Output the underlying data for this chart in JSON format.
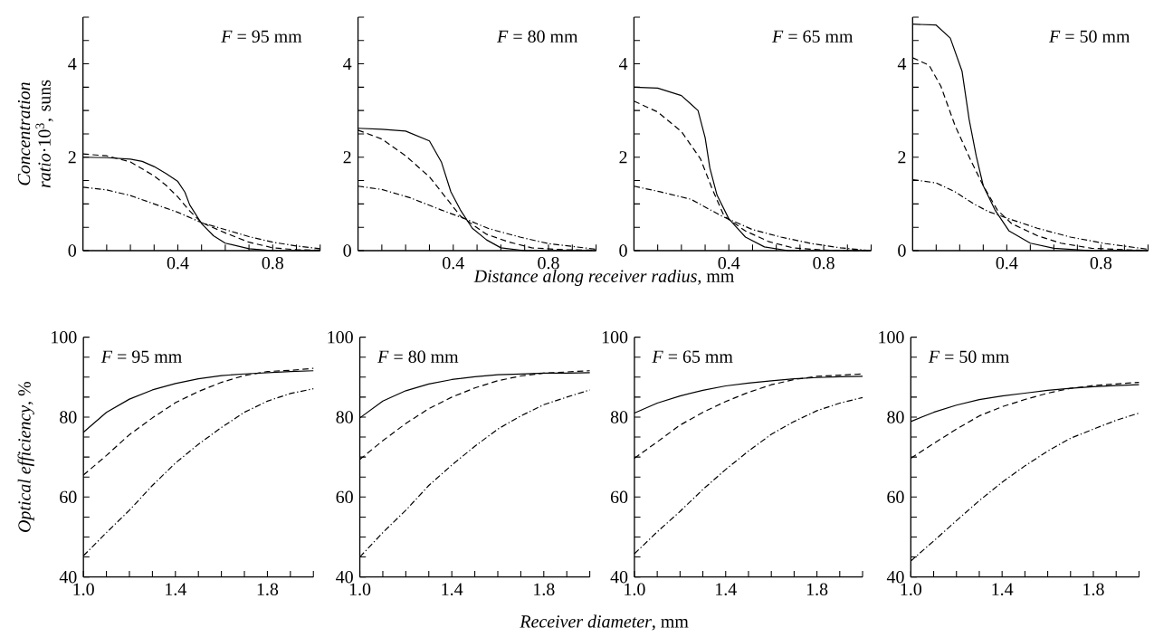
{
  "chart_data": [
    {
      "type": "line",
      "title": "*F* = 95 mm",
      "ylabel": "*Concentration ratio*·10$^{3}$, suns",
      "xlim": [
        0,
        1.0
      ],
      "ylim": [
        0,
        5
      ],
      "xticks": [
        {
          "value": 0.1,
          "label": null
        },
        {
          "value": 0.2,
          "label": null
        },
        {
          "value": 0.3,
          "label": null
        },
        0.4,
        {
          "value": 0.5,
          "label": null
        },
        {
          "value": 0.6,
          "label": null
        },
        {
          "value": 0.7,
          "label": null
        },
        0.8,
        {
          "value": 0.9,
          "label": null
        },
        {
          "value": 1.0,
          "label": null
        }
      ],
      "yticks": [
        0,
        {
          "value": 0.5,
          "label": null
        },
        {
          "value": 1,
          "label": null
        },
        {
          "value": 1.5,
          "label": null
        },
        2,
        {
          "value": 2.5,
          "label": null
        },
        {
          "value": 3,
          "label": null
        },
        {
          "value": 3.5,
          "label": null
        },
        4,
        {
          "value": 4.5,
          "label": null
        },
        {
          "value": 5,
          "label": null
        }
      ],
      "series": [
        {
          "color": "#000000",
          "line_style": "solid",
          "x": [
            0,
            0.1,
            0.2,
            0.25,
            0.3,
            0.35,
            0.4,
            0.43,
            0.45,
            0.5,
            0.55,
            0.6,
            0.7,
            0.8,
            1.0
          ],
          "values": [
            2.0,
            1.99,
            1.96,
            1.91,
            1.8,
            1.65,
            1.48,
            1.25,
            0.98,
            0.58,
            0.32,
            0.16,
            0.04,
            0.0,
            0.0
          ]
        },
        {
          "color": "#000000",
          "line_style": "dashed",
          "x": [
            0,
            0.1,
            0.2,
            0.3,
            0.35,
            0.4,
            0.45,
            0.5,
            0.6,
            0.7,
            0.8,
            0.9,
            1.0
          ],
          "values": [
            2.07,
            2.03,
            1.9,
            1.6,
            1.4,
            1.15,
            0.85,
            0.6,
            0.38,
            0.18,
            0.06,
            0.02,
            0.01
          ]
        },
        {
          "color": "#000000",
          "line_style": "dashdot",
          "x": [
            0,
            0.1,
            0.2,
            0.3,
            0.4,
            0.5,
            0.6,
            0.7,
            0.8,
            0.9,
            1.0
          ],
          "values": [
            1.36,
            1.3,
            1.18,
            1.0,
            0.82,
            0.6,
            0.45,
            0.3,
            0.18,
            0.1,
            0.04
          ]
        }
      ]
    },
    {
      "type": "line",
      "title": "*F* = 80 mm",
      "xlabel": "*Distance along receiver radius*, mm",
      "xlim": [
        0,
        1.0
      ],
      "ylim": [
        0,
        5
      ],
      "xticks": [
        {
          "value": 0.1,
          "label": null
        },
        {
          "value": 0.2,
          "label": null
        },
        {
          "value": 0.3,
          "label": null
        },
        0.4,
        {
          "value": 0.5,
          "label": null
        },
        {
          "value": 0.6,
          "label": null
        },
        {
          "value": 0.7,
          "label": null
        },
        0.8,
        {
          "value": 0.9,
          "label": null
        },
        {
          "value": 1.0,
          "label": null
        }
      ],
      "yticks": [
        0,
        {
          "value": 0.5,
          "label": null
        },
        {
          "value": 1,
          "label": null
        },
        {
          "value": 1.5,
          "label": null
        },
        2,
        {
          "value": 2.5,
          "label": null
        },
        {
          "value": 3,
          "label": null
        },
        {
          "value": 3.5,
          "label": null
        },
        4,
        {
          "value": 4.5,
          "label": null
        },
        {
          "value": 5,
          "label": null
        }
      ],
      "series": [
        {
          "color": "#000000",
          "line_style": "solid",
          "x": [
            0,
            0.1,
            0.2,
            0.3,
            0.35,
            0.39,
            0.43,
            0.48,
            0.54,
            0.6,
            0.7,
            1.0
          ],
          "values": [
            2.62,
            2.6,
            2.56,
            2.35,
            1.9,
            1.26,
            0.87,
            0.48,
            0.23,
            0.06,
            0.0,
            0.0
          ]
        },
        {
          "color": "#000000",
          "line_style": "dashed",
          "x": [
            0,
            0.1,
            0.2,
            0.3,
            0.37,
            0.43,
            0.54,
            0.63,
            0.73,
            0.86,
            1.0
          ],
          "values": [
            2.58,
            2.39,
            2.03,
            1.58,
            1.13,
            0.74,
            0.35,
            0.19,
            0.06,
            0.02,
            0.01
          ]
        },
        {
          "color": "#000000",
          "line_style": "dashdot",
          "x": [
            0,
            0.1,
            0.22,
            0.35,
            0.45,
            0.55,
            0.68,
            0.8,
            1.0
          ],
          "values": [
            1.38,
            1.31,
            1.13,
            0.87,
            0.68,
            0.47,
            0.29,
            0.15,
            0.03
          ]
        }
      ]
    },
    {
      "type": "line",
      "title": "*F* = 65 mm",
      "xlim": [
        0,
        1.0
      ],
      "ylim": [
        0,
        5
      ],
      "xticks": [
        {
          "value": 0.1,
          "label": null
        },
        {
          "value": 0.2,
          "label": null
        },
        {
          "value": 0.3,
          "label": null
        },
        0.4,
        {
          "value": 0.5,
          "label": null
        },
        {
          "value": 0.6,
          "label": null
        },
        {
          "value": 0.7,
          "label": null
        },
        0.8,
        {
          "value": 0.9,
          "label": null
        },
        {
          "value": 1.0,
          "label": null
        }
      ],
      "yticks": [
        0,
        {
          "value": 0.5,
          "label": null
        },
        {
          "value": 1,
          "label": null
        },
        {
          "value": 1.5,
          "label": null
        },
        2,
        {
          "value": 2.5,
          "label": null
        },
        {
          "value": 3,
          "label": null
        },
        {
          "value": 3.5,
          "label": null
        },
        4,
        {
          "value": 4.5,
          "label": null
        },
        {
          "value": 5,
          "label": null
        }
      ],
      "series": [
        {
          "color": "#000000",
          "line_style": "solid",
          "x": [
            0,
            0.1,
            0.2,
            0.27,
            0.3,
            0.32,
            0.35,
            0.4,
            0.47,
            0.55,
            0.65,
            1.0
          ],
          "values": [
            3.5,
            3.48,
            3.32,
            3.0,
            2.42,
            1.77,
            1.19,
            0.68,
            0.29,
            0.08,
            0.0,
            0.0
          ]
        },
        {
          "color": "#000000",
          "line_style": "dashed",
          "x": [
            0,
            0.1,
            0.2,
            0.28,
            0.33,
            0.38,
            0.47,
            0.57,
            0.67,
            0.8,
            1.0
          ],
          "values": [
            3.2,
            2.97,
            2.55,
            1.97,
            1.32,
            0.74,
            0.42,
            0.19,
            0.06,
            0.01,
            0.0
          ]
        },
        {
          "color": "#000000",
          "line_style": "dashdot",
          "x": [
            0,
            0.11,
            0.24,
            0.37,
            0.5,
            0.62,
            0.75,
            0.87,
            1.0
          ],
          "values": [
            1.38,
            1.26,
            1.1,
            0.74,
            0.45,
            0.29,
            0.15,
            0.06,
            0.0
          ]
        }
      ]
    },
    {
      "type": "line",
      "title": "*F* = 50 mm",
      "xlim": [
        0,
        1.0
      ],
      "ylim": [
        0,
        5
      ],
      "xticks": [
        {
          "value": 0.1,
          "label": null
        },
        {
          "value": 0.2,
          "label": null
        },
        {
          "value": 0.3,
          "label": null
        },
        0.4,
        {
          "value": 0.5,
          "label": null
        },
        {
          "value": 0.6,
          "label": null
        },
        {
          "value": 0.7,
          "label": null
        },
        0.8,
        {
          "value": 0.9,
          "label": null
        },
        {
          "value": 1.0,
          "label": null
        }
      ],
      "yticks": [
        0,
        {
          "value": 0.5,
          "label": null
        },
        {
          "value": 1,
          "label": null
        },
        {
          "value": 1.5,
          "label": null
        },
        2,
        {
          "value": 2.5,
          "label": null
        },
        {
          "value": 3,
          "label": null
        },
        {
          "value": 3.5,
          "label": null
        },
        4,
        {
          "value": 4.5,
          "label": null
        },
        {
          "value": 5,
          "label": null
        }
      ],
      "series": [
        {
          "color": "#000000",
          "line_style": "solid",
          "x": [
            0,
            0.1,
            0.16,
            0.21,
            0.24,
            0.27,
            0.3,
            0.35,
            0.41,
            0.5,
            0.6,
            0.76,
            1.0
          ],
          "values": [
            4.85,
            4.83,
            4.55,
            3.84,
            2.81,
            2.03,
            1.39,
            0.87,
            0.42,
            0.16,
            0.05,
            0.0,
            0.0
          ]
        },
        {
          "color": "#000000",
          "line_style": "dashed",
          "x": [
            0,
            0.07,
            0.12,
            0.18,
            0.25,
            0.3,
            0.36,
            0.42,
            0.53,
            0.63,
            0.76,
            1.0
          ],
          "values": [
            4.13,
            3.97,
            3.52,
            2.68,
            1.9,
            1.39,
            0.87,
            0.58,
            0.32,
            0.16,
            0.05,
            0.0
          ]
        },
        {
          "color": "#000000",
          "line_style": "dashdot",
          "x": [
            0,
            0.1,
            0.18,
            0.26,
            0.32,
            0.41,
            0.53,
            0.67,
            0.82,
            1.0
          ],
          "values": [
            1.52,
            1.45,
            1.26,
            1.0,
            0.84,
            0.68,
            0.48,
            0.29,
            0.15,
            0.03
          ]
        }
      ]
    },
    {
      "type": "line",
      "title": "*F* = 95 mm",
      "ylabel": "*Optical efficiency*, %",
      "xlim": [
        1.0,
        2.0
      ],
      "ylim": [
        40,
        100
      ],
      "x": [
        1.0,
        1.1,
        1.2,
        1.3,
        1.4,
        1.5,
        1.6,
        1.7,
        1.8,
        1.9,
        2.0
      ],
      "xticks": [
        {
          "value": 1.0,
          "label": "1.0"
        },
        {
          "value": 1.1,
          "label": null
        },
        {
          "value": 1.2,
          "label": null
        },
        {
          "value": 1.3,
          "label": null
        },
        1.4,
        {
          "value": 1.5,
          "label": null
        },
        {
          "value": 1.6,
          "label": null
        },
        {
          "value": 1.7,
          "label": null
        },
        1.8,
        {
          "value": 1.9,
          "label": null
        },
        {
          "value": 2.0,
          "label": null
        }
      ],
      "yticks": [
        40,
        {
          "value": 45,
          "label": null
        },
        {
          "value": 50,
          "label": null
        },
        {
          "value": 55,
          "label": null
        },
        60,
        {
          "value": 65,
          "label": null
        },
        {
          "value": 70,
          "label": null
        },
        {
          "value": 75,
          "label": null
        },
        80,
        {
          "value": 85,
          "label": null
        },
        {
          "value": 90,
          "label": null
        },
        {
          "value": 95,
          "label": null
        },
        100
      ],
      "series": [
        {
          "color": "#000000",
          "line_style": "solid",
          "values": [
            76.2,
            81.2,
            84.5,
            86.8,
            88.4,
            89.6,
            90.4,
            90.8,
            91.1,
            91.4,
            91.6
          ]
        },
        {
          "color": "#000000",
          "line_style": "dashed",
          "values": [
            65.5,
            70.4,
            75.6,
            79.8,
            83.6,
            86.4,
            88.7,
            90.4,
            91.4,
            91.7,
            92.2
          ]
        },
        {
          "color": "#000000",
          "line_style": "dashdot",
          "values": [
            45.3,
            51.1,
            56.7,
            62.9,
            68.5,
            73.2,
            77.4,
            81.2,
            84.0,
            85.9,
            87.1
          ]
        }
      ]
    },
    {
      "type": "line",
      "title": "*F* = 80 mm",
      "xlabel": "*Receiver diameter*, mm",
      "xlim": [
        1.0,
        2.0
      ],
      "ylim": [
        40,
        100
      ],
      "x": [
        1.0,
        1.1,
        1.2,
        1.3,
        1.4,
        1.5,
        1.6,
        1.7,
        1.8,
        1.9,
        2.0
      ],
      "xticks": [
        {
          "value": 1.0,
          "label": "1.0"
        },
        {
          "value": 1.1,
          "label": null
        },
        {
          "value": 1.2,
          "label": null
        },
        {
          "value": 1.3,
          "label": null
        },
        1.4,
        {
          "value": 1.5,
          "label": null
        },
        {
          "value": 1.6,
          "label": null
        },
        {
          "value": 1.7,
          "label": null
        },
        1.8,
        {
          "value": 1.9,
          "label": null
        },
        {
          "value": 2.0,
          "label": null
        }
      ],
      "yticks": [
        40,
        {
          "value": 45,
          "label": null
        },
        {
          "value": 50,
          "label": null
        },
        {
          "value": 55,
          "label": null
        },
        60,
        {
          "value": 65,
          "label": null
        },
        {
          "value": 70,
          "label": null
        },
        {
          "value": 75,
          "label": null
        },
        80,
        {
          "value": 85,
          "label": null
        },
        {
          "value": 90,
          "label": null
        },
        {
          "value": 95,
          "label": null
        },
        100
      ],
      "series": [
        {
          "color": "#000000",
          "line_style": "solid",
          "values": [
            79.8,
            84.0,
            86.6,
            88.3,
            89.4,
            90.1,
            90.6,
            90.8,
            91.0,
            91.0,
            91.1
          ]
        },
        {
          "color": "#000000",
          "line_style": "dashed",
          "values": [
            69.4,
            74.1,
            78.4,
            82.1,
            85.0,
            87.3,
            89.1,
            90.3,
            91.0,
            91.3,
            91.6
          ]
        },
        {
          "color": "#000000",
          "line_style": "dashdot",
          "values": [
            45.0,
            51.1,
            56.7,
            62.9,
            68.0,
            72.7,
            77.0,
            80.3,
            83.1,
            85.0,
            86.8
          ]
        }
      ]
    },
    {
      "type": "line",
      "title": "*F* = 65 mm",
      "xlim": [
        1.0,
        2.0
      ],
      "ylim": [
        40,
        100
      ],
      "x": [
        1.0,
        1.1,
        1.2,
        1.3,
        1.4,
        1.5,
        1.6,
        1.7,
        1.8,
        1.9,
        2.0
      ],
      "xticks": [
        {
          "value": 1.0,
          "label": "1.0"
        },
        {
          "value": 1.1,
          "label": null
        },
        {
          "value": 1.2,
          "label": null
        },
        {
          "value": 1.3,
          "label": null
        },
        1.4,
        {
          "value": 1.5,
          "label": null
        },
        {
          "value": 1.6,
          "label": null
        },
        {
          "value": 1.7,
          "label": null
        },
        1.8,
        {
          "value": 1.9,
          "label": null
        },
        {
          "value": 2.0,
          "label": null
        }
      ],
      "yticks": [
        40,
        {
          "value": 45,
          "label": null
        },
        {
          "value": 50,
          "label": null
        },
        {
          "value": 55,
          "label": null
        },
        60,
        {
          "value": 65,
          "label": null
        },
        {
          "value": 70,
          "label": null
        },
        {
          "value": 75,
          "label": null
        },
        80,
        {
          "value": 85,
          "label": null
        },
        {
          "value": 90,
          "label": null
        },
        {
          "value": 95,
          "label": null
        },
        100
      ],
      "series": [
        {
          "color": "#000000",
          "line_style": "solid",
          "values": [
            81.0,
            83.5,
            85.3,
            86.7,
            87.8,
            88.5,
            89.1,
            89.6,
            89.9,
            90.1,
            90.2
          ]
        },
        {
          "color": "#000000",
          "line_style": "dashed",
          "values": [
            69.7,
            73.8,
            78.0,
            81.2,
            83.9,
            86.2,
            88.1,
            89.4,
            90.2,
            90.5,
            90.8
          ]
        },
        {
          "color": "#000000",
          "line_style": "dashdot",
          "values": [
            45.8,
            51.3,
            56.4,
            61.9,
            66.9,
            71.5,
            75.7,
            78.9,
            81.6,
            83.5,
            84.9
          ]
        }
      ]
    },
    {
      "type": "line",
      "title": "*F* = 50 mm",
      "xlim": [
        1.0,
        2.0
      ],
      "ylim": [
        40,
        100
      ],
      "x": [
        1.0,
        1.1,
        1.2,
        1.3,
        1.4,
        1.5,
        1.6,
        1.7,
        1.8,
        1.9,
        2.0
      ],
      "xticks": [
        {
          "value": 1.0,
          "label": "1.0"
        },
        {
          "value": 1.1,
          "label": null
        },
        {
          "value": 1.2,
          "label": null
        },
        {
          "value": 1.3,
          "label": null
        },
        1.4,
        {
          "value": 1.5,
          "label": null
        },
        {
          "value": 1.6,
          "label": null
        },
        {
          "value": 1.7,
          "label": null
        },
        1.8,
        {
          "value": 1.9,
          "label": null
        },
        {
          "value": 2.0,
          "label": null
        }
      ],
      "yticks": [
        40,
        {
          "value": 45,
          "label": null
        },
        {
          "value": 50,
          "label": null
        },
        {
          "value": 55,
          "label": null
        },
        60,
        {
          "value": 65,
          "label": null
        },
        {
          "value": 70,
          "label": null
        },
        {
          "value": 75,
          "label": null
        },
        80,
        {
          "value": 85,
          "label": null
        },
        {
          "value": 90,
          "label": null
        },
        {
          "value": 95,
          "label": null
        },
        100
      ],
      "series": [
        {
          "color": "#000000",
          "line_style": "solid",
          "values": [
            78.9,
            81.2,
            83.0,
            84.4,
            85.3,
            86.0,
            86.7,
            87.2,
            87.6,
            87.9,
            88.1
          ]
        },
        {
          "color": "#000000",
          "line_style": "dashed",
          "values": [
            69.7,
            73.4,
            77.0,
            80.3,
            82.6,
            84.4,
            86.0,
            87.2,
            87.9,
            88.3,
            88.7
          ]
        },
        {
          "color": "#000000",
          "line_style": "dashdot",
          "values": [
            44.0,
            49.0,
            54.1,
            59.1,
            63.7,
            67.8,
            71.5,
            74.7,
            77.0,
            79.2,
            81.0
          ]
        }
      ]
    }
  ]
}
